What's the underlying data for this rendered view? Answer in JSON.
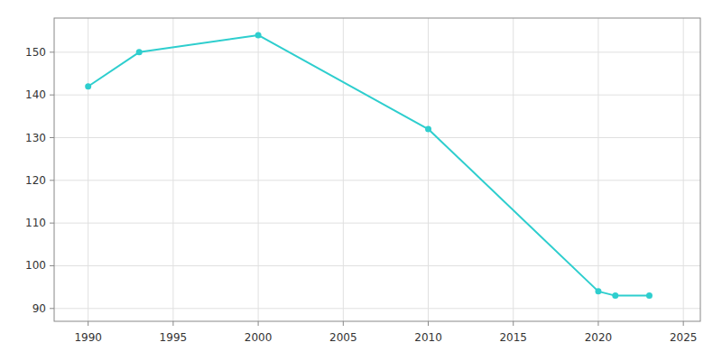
{
  "chart_data": {
    "type": "line",
    "x": [
      1990,
      1993,
      2000,
      2010,
      2020,
      2021,
      2023
    ],
    "values": [
      142,
      150,
      154,
      132,
      94,
      93,
      93
    ],
    "color": "#2ecece",
    "marker": "circle",
    "xlim": [
      1988,
      2026
    ],
    "ylim": [
      87,
      158
    ],
    "xticks": [
      1990,
      1995,
      2000,
      2005,
      2010,
      2015,
      2020,
      2025
    ],
    "yticks": [
      90,
      100,
      110,
      120,
      130,
      140,
      150
    ],
    "grid": true
  }
}
